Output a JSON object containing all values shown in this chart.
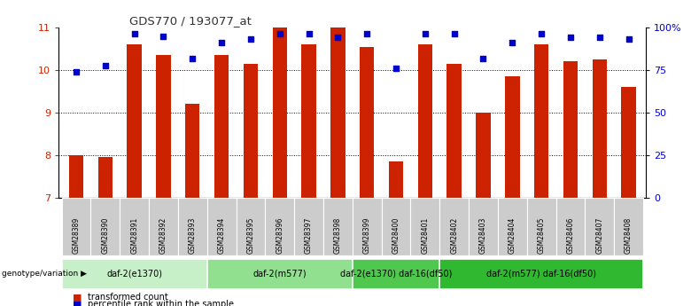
{
  "title": "GDS770 / 193077_at",
  "samples": [
    "GSM28389",
    "GSM28390",
    "GSM28391",
    "GSM28392",
    "GSM28393",
    "GSM28394",
    "GSM28395",
    "GSM28396",
    "GSM28397",
    "GSM28398",
    "GSM28399",
    "GSM28400",
    "GSM28401",
    "GSM28402",
    "GSM28403",
    "GSM28404",
    "GSM28405",
    "GSM28406",
    "GSM28407",
    "GSM28408"
  ],
  "bar_values": [
    8.0,
    7.95,
    10.6,
    10.35,
    9.2,
    10.35,
    10.15,
    11.0,
    10.6,
    11.0,
    10.55,
    7.85,
    10.6,
    10.15,
    9.0,
    9.85,
    10.6,
    10.2,
    10.25,
    9.6
  ],
  "dot_values": [
    9.95,
    10.1,
    10.85,
    10.8,
    10.27,
    10.65,
    10.72,
    10.85,
    10.85,
    10.78,
    10.85,
    10.05,
    10.85,
    10.85,
    10.27,
    10.65,
    10.85,
    10.78,
    10.78,
    10.72
  ],
  "ylim_left": [
    7,
    11
  ],
  "yticks_left": [
    7,
    8,
    9,
    10,
    11
  ],
  "yticks_right_labels": [
    "0",
    "25",
    "50",
    "75",
    "100%"
  ],
  "groups": [
    {
      "label": "daf-2(e1370)",
      "start": 0,
      "end": 5,
      "color": "#c8f0c8"
    },
    {
      "label": "daf-2(m577)",
      "start": 5,
      "end": 10,
      "color": "#90e090"
    },
    {
      "label": "daf-2(e1370) daf-16(df50)",
      "start": 10,
      "end": 13,
      "color": "#50c850"
    },
    {
      "label": "daf-2(m577) daf-16(df50)",
      "start": 13,
      "end": 20,
      "color": "#30b830"
    }
  ],
  "bar_color": "#cc2200",
  "dot_color": "#0000cc",
  "bar_width": 0.5,
  "genotype_label": "genotype/variation",
  "legend_bar": "transformed count",
  "legend_dot": "percentile rank within the sample",
  "title_color": "#333333",
  "left_tick_color": "#cc2200",
  "right_tick_color": "#0000cc"
}
